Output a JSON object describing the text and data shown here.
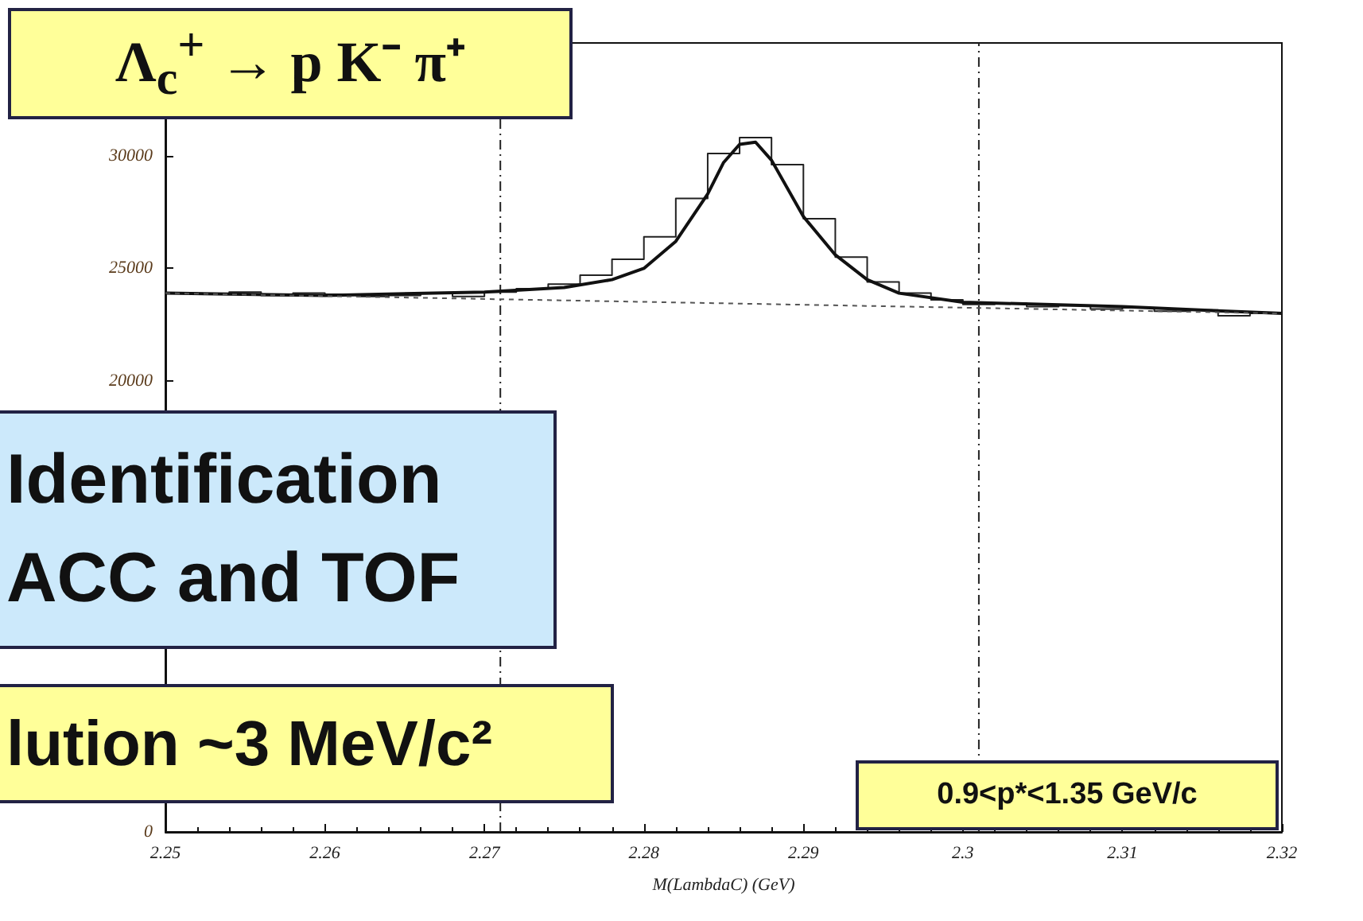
{
  "chart_data": {
    "type": "step",
    "title": "Λ$_{c}$$^{+}$ → p K⁻ π⁺",
    "xlabel": "M(LambdaC) (GeV)",
    "annotations": [
      "Identification",
      "ACC and TOF",
      "lution ~3 MeV/c²",
      "0.9<p*<1.35 GeV/c"
    ],
    "x": [
      2.251,
      2.253,
      2.255,
      2.257,
      2.259,
      2.261,
      2.263,
      2.265,
      2.267,
      2.269,
      2.271,
      2.273,
      2.275,
      2.277,
      2.279,
      2.281,
      2.283,
      2.285,
      2.287,
      2.289,
      2.291,
      2.293,
      2.295,
      2.297,
      2.299,
      2.301,
      2.303,
      2.305,
      2.307,
      2.309,
      2.311,
      2.313,
      2.315,
      2.317,
      2.319
    ],
    "values": [
      23900,
      23850,
      23950,
      23800,
      23900,
      23850,
      23750,
      23800,
      23900,
      23750,
      23950,
      24100,
      24300,
      24700,
      25400,
      26400,
      28100,
      30100,
      30800,
      29600,
      27200,
      25500,
      24400,
      23900,
      23600,
      23400,
      23450,
      23300,
      23350,
      23200,
      23250,
      23100,
      23150,
      22900,
      23000
    ],
    "color": "#222222",
    "series": [
      {
        "type": "line",
        "color": "#111111",
        "line_style": "solid",
        "x": [
          2.25,
          2.26,
          2.27,
          2.275,
          2.278,
          2.28,
          2.282,
          2.284,
          2.285,
          2.286,
          2.287,
          2.288,
          2.29,
          2.292,
          2.294,
          2.296,
          2.3,
          2.31,
          2.32
        ],
        "values": [
          23900,
          23800,
          23950,
          24150,
          24500,
          25000,
          26200,
          28300,
          29700,
          30500,
          30600,
          29800,
          27300,
          25600,
          24500,
          23900,
          23500,
          23300,
          23000
        ]
      },
      {
        "type": "line",
        "color": "#555555",
        "line_style": "dashed",
        "x": [
          2.25,
          2.32
        ],
        "values": [
          23900,
          23000
        ]
      }
    ],
    "ref_lines": [
      {
        "axis": "x",
        "value": 2.271,
        "line_style": "dashed",
        "color": "#222222"
      },
      {
        "axis": "x",
        "value": 2.301,
        "line_style": "dashed",
        "color": "#222222"
      }
    ],
    "xlim": [
      2.25,
      2.32
    ],
    "xticks": [
      2.25,
      2.26,
      2.27,
      2.28,
      2.29,
      2.3,
      2.31,
      2.32
    ],
    "ylim": [
      0,
      35000
    ],
    "yticks": [
      0,
      {
        "value": 5000,
        "label": null
      },
      {
        "value": 10000,
        "label": null
      },
      {
        "value": 15000,
        "label": null
      },
      20000,
      25000,
      30000
    ],
    "grid": false
  }
}
